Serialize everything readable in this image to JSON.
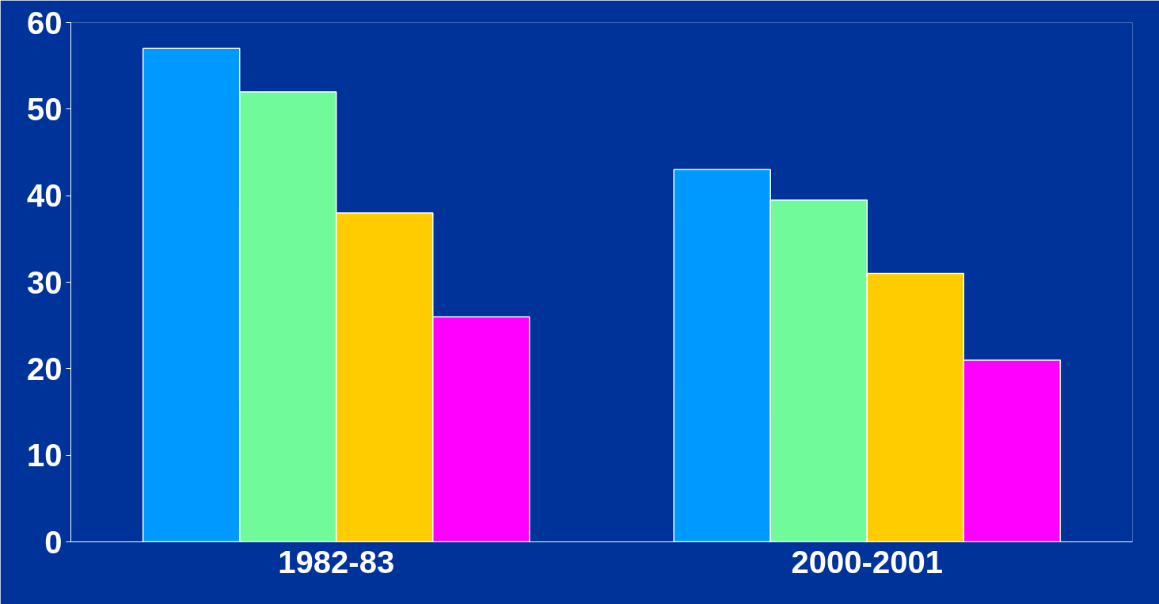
{
  "chart_data": {
    "type": "bar",
    "categories": [
      "1982-83",
      "2000-2001"
    ],
    "series": [
      {
        "color": "#0099ff",
        "values": [
          57,
          43
        ]
      },
      {
        "color": "#70fa9a",
        "values": [
          52,
          39.5
        ]
      },
      {
        "color": "#ffcc00",
        "values": [
          38,
          31
        ]
      },
      {
        "color": "#ff00ff",
        "values": [
          26,
          21
        ]
      }
    ],
    "ylim": [
      0,
      60
    ],
    "yticks": [
      0,
      10,
      20,
      30,
      40,
      50,
      60
    ],
    "grid": false
  }
}
